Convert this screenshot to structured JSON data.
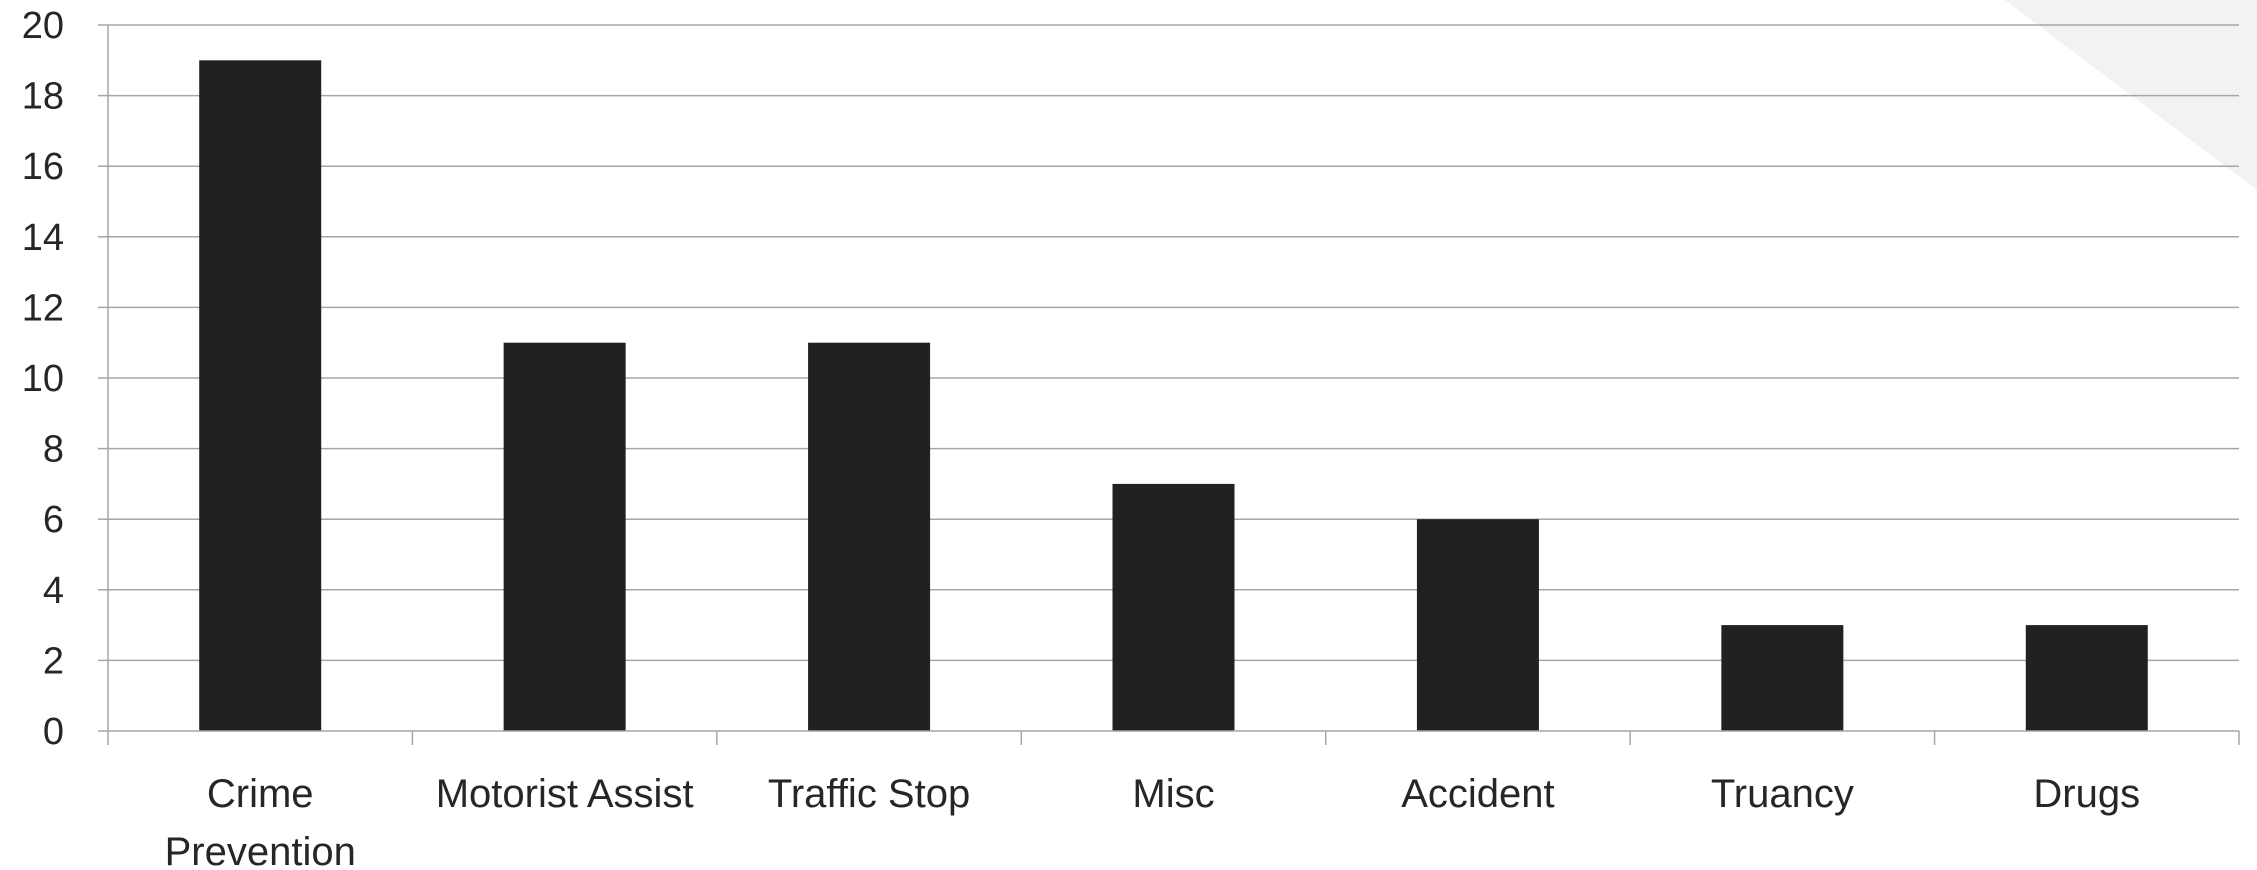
{
  "chart_data": {
    "type": "bar",
    "categories": [
      [
        "Crime",
        "Prevention"
      ],
      [
        "Motorist Assist"
      ],
      [
        "Traffic Stop"
      ],
      [
        "Misc"
      ],
      [
        "Accident"
      ],
      [
        "Truancy"
      ],
      [
        "Drugs"
      ]
    ],
    "values": [
      19,
      11,
      11,
      7,
      6,
      3,
      3
    ],
    "ylim": [
      0,
      20
    ],
    "yticks": [
      0,
      2,
      4,
      6,
      8,
      10,
      12,
      14,
      16,
      18,
      20
    ],
    "grid": true,
    "legend": "none",
    "colors": {
      "bar": "#212121",
      "grid": "#a6a6a6",
      "text": "#262626",
      "corner_decoration": "#f2f2f2"
    }
  }
}
